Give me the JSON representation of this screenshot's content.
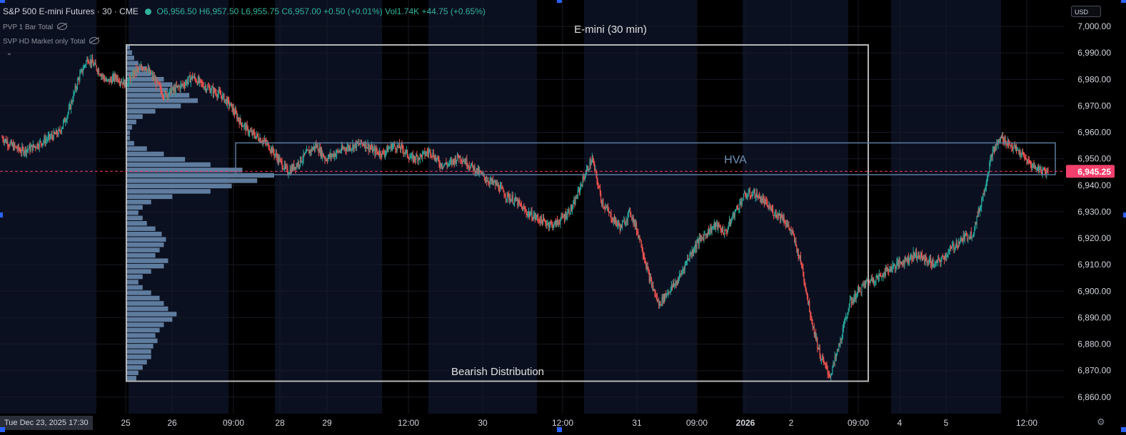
{
  "header": {
    "symbol": "S&P 500 E-mini Futures · 30 · CME",
    "ohlc": "O6,956.50 H6,957.50 L6,955.75 C6,957.00 +0.50 (+0.01%) Vol1.74K +44.75 (+0.65%)",
    "status_color": "#2fb39b"
  },
  "indicators": [
    "PVP 1 Bar Total",
    "SVP HD Market only Total"
  ],
  "icons": {
    "visibility": "eye-off-icon",
    "collapse": "chevron-up-icon",
    "settings": "gear-icon"
  },
  "currency": "USD",
  "crosshair_date": "Tue Dec 23, 2025   17:30",
  "price_badge": "6,945.25",
  "colors": {
    "up": "#26a69a",
    "down": "#ef5350",
    "volume_profile": "#6f8fb5",
    "hva_box": "#5a7ca0",
    "price_badge": "#f23f6b",
    "distribution_box": "#b7b7b7"
  },
  "chart_data": {
    "type": "candlestick",
    "title": "E-mini (30 min)",
    "y_ticks": [
      "7,000.00",
      "6,990.00",
      "6,980.00",
      "6,970.00",
      "6,960.00",
      "6,950.00",
      "6,940.00",
      "6,930.00",
      "6,920.00",
      "6,910.00",
      "6,900.00",
      "6,890.00",
      "6,880.00",
      "6,870.00",
      "6,860.00"
    ],
    "ylim": [
      6855,
      7003
    ],
    "x_ticks": [
      "25",
      "26",
      "09:00",
      "28",
      "29",
      "12:00",
      "30",
      "12:00",
      "31",
      "09:00",
      "2026",
      "2",
      "09:00",
      "4",
      "5",
      "12:00"
    ],
    "last_price": 6945.25,
    "annotations": [
      {
        "label": "HVA",
        "type": "box",
        "price_top": 6956,
        "price_bottom": 6944
      },
      {
        "label": "Bearish Distribution",
        "type": "box",
        "price_top": 6993,
        "price_bottom": 6866
      }
    ],
    "price_path": [
      6958,
      6955,
      6953,
      6954,
      6956,
      6958,
      6960,
      6968,
      6980,
      6988,
      6984,
      6979,
      6981,
      6978,
      6983,
      6985,
      6980,
      6974,
      6976,
      6978,
      6981,
      6978,
      6976,
      6974,
      6970,
      6964,
      6960,
      6958,
      6955,
      6950,
      6945,
      6948,
      6952,
      6955,
      6950,
      6952,
      6954,
      6955,
      6956,
      6953,
      6952,
      6955,
      6954,
      6950,
      6951,
      6953,
      6948,
      6948,
      6951,
      6948,
      6945,
      6942,
      6940,
      6936,
      6934,
      6930,
      6928,
      6926,
      6925,
      6928,
      6932,
      6942,
      6950,
      6934,
      6928,
      6924,
      6930,
      6920,
      6905,
      6895,
      6900,
      6904,
      6912,
      6918,
      6922,
      6925,
      6922,
      6930,
      6936,
      6937,
      6934,
      6930,
      6928,
      6922,
      6910,
      6890,
      6875,
      6868,
      6880,
      6895,
      6900,
      6904,
      6905,
      6908,
      6910,
      6912,
      6914,
      6912,
      6910,
      6913,
      6917,
      6920,
      6922,
      6935,
      6952,
      6958,
      6955,
      6952,
      6948,
      6946,
      6945
    ],
    "volume_profile": [
      2,
      3,
      4,
      6,
      10,
      12,
      18,
      22,
      20,
      30,
      34,
      26,
      14,
      8,
      5,
      3,
      2,
      2,
      4,
      10,
      18,
      28,
      40,
      55,
      70,
      62,
      50,
      40,
      22,
      12,
      8,
      6,
      8,
      10,
      14,
      17,
      19,
      18,
      16,
      14,
      20,
      18,
      12,
      8,
      6,
      8,
      12,
      16,
      18,
      20,
      24,
      22,
      18,
      16,
      14,
      15,
      13,
      12,
      12,
      10,
      8,
      6,
      5
    ],
    "profile_price_range": [
      6866,
      6993
    ]
  }
}
